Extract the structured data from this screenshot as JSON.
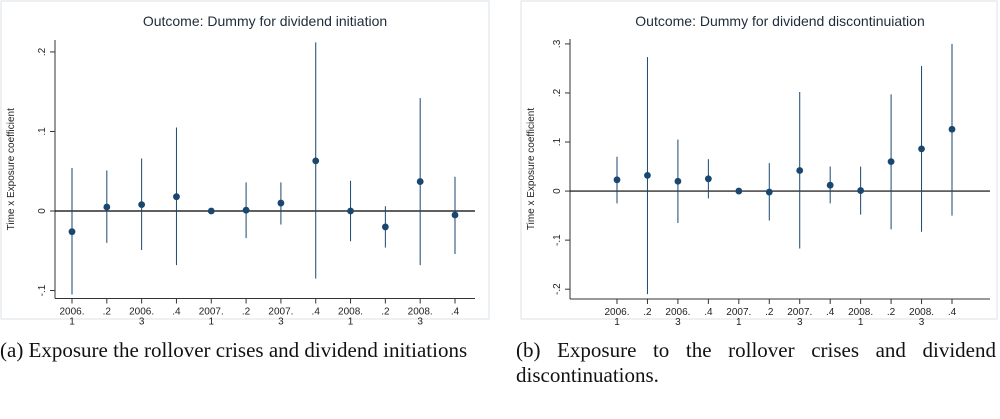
{
  "chart_data": [
    {
      "type": "errorbar",
      "title": "Outcome: Dummy for dividend initiation",
      "y_label": "Time x Exposure coefficient",
      "categories": [
        "2006.\n1",
        ".2",
        "2006.\n3",
        ".4",
        "2007.\n1",
        ".2",
        "2007.\n3",
        ".4",
        "2008.\n1",
        ".2",
        "2008.\n3",
        ".4"
      ],
      "color": "#1a476f",
      "values": [
        -0.026,
        0.005,
        0.008,
        0.018,
        0.0,
        0.001,
        0.01,
        0.063,
        0.0,
        -0.02,
        0.037,
        -0.005
      ],
      "lower": [
        -0.105,
        -0.04,
        -0.049,
        -0.068,
        null,
        -0.034,
        -0.017,
        -0.085,
        -0.038,
        -0.046,
        -0.068,
        -0.054
      ],
      "upper": [
        0.054,
        0.051,
        0.066,
        0.105,
        null,
        0.036,
        0.036,
        0.212,
        0.038,
        0.006,
        0.142,
        0.043
      ],
      "ylim": [
        -0.11,
        0.215
      ],
      "yticks": [
        {
          "value": -0.1,
          "label": "-.1"
        },
        0,
        {
          "value": 0.1,
          "label": ".1"
        },
        {
          "value": 0.2,
          "label": ".2"
        }
      ]
    },
    {
      "type": "errorbar",
      "title": "Outcome: Dummy for dividend discontinuiation",
      "y_label": "Time x Exposure coefficient",
      "categories": [
        "2006.\n1",
        ".2",
        "2006.\n3",
        ".4",
        "2007.\n1",
        ".2",
        "2007.\n3",
        ".4",
        "2008.\n1",
        ".2",
        "2008.\n3",
        ".4"
      ],
      "color": "#1a476f",
      "values": [
        0.023,
        0.032,
        0.02,
        0.025,
        0.0,
        -0.002,
        0.042,
        0.012,
        0.001,
        0.06,
        0.086,
        0.126
      ],
      "lower": [
        -0.025,
        -0.21,
        -0.065,
        -0.015,
        null,
        -0.06,
        -0.117,
        -0.025,
        -0.048,
        -0.078,
        -0.083,
        -0.05
      ],
      "upper": [
        0.07,
        0.273,
        0.105,
        0.065,
        null,
        0.057,
        0.202,
        0.05,
        0.05,
        0.197,
        0.255,
        0.3
      ],
      "ylim": [
        -0.22,
        0.31
      ],
      "yticks": [
        {
          "value": -0.2,
          "label": "-.2"
        },
        {
          "value": -0.1,
          "label": "-.1"
        },
        0,
        {
          "value": 0.1,
          "label": ".1"
        },
        {
          "value": 0.2,
          "label": ".2"
        },
        {
          "value": 0.3,
          "label": ".3"
        }
      ]
    }
  ],
  "captions": [
    "(a) Exposure the rollover crises and dividend initiations",
    "(b) Exposure to the rollover crises and dividend discontinuations."
  ]
}
